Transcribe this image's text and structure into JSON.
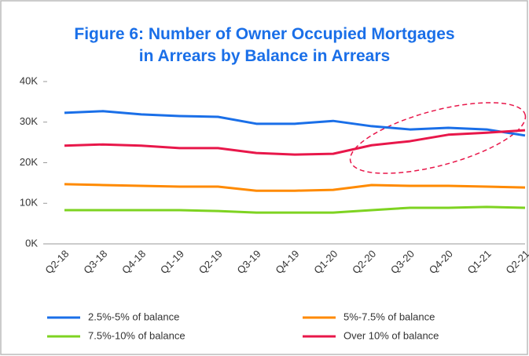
{
  "chart_data": {
    "type": "line",
    "title": "Figure 6: Number of Owner Occupied Mortgages\nin Arrears by Balance in Arrears",
    "categories": [
      "Q2-18",
      "Q3-18",
      "Q4-18",
      "Q1-19",
      "Q2-19",
      "Q3-19",
      "Q4-19",
      "Q1-20",
      "Q2-20",
      "Q3-20",
      "Q4-20",
      "Q1-21",
      "Q2-21"
    ],
    "series": [
      {
        "name": "2.5%-5% of balance",
        "color": "#1a6fe8",
        "values": [
          32.3,
          32.7,
          31.9,
          31.5,
          31.3,
          29.6,
          29.6,
          30.3,
          29,
          28.2,
          28.6,
          28.2,
          26.7
        ]
      },
      {
        "name": "5%-7.5% of balance",
        "color": "#ff8a00",
        "values": [
          14.7,
          14.5,
          14.3,
          14.1,
          14.1,
          13.1,
          13.1,
          13.3,
          14.5,
          14.3,
          14.3,
          14.1,
          13.9
        ]
      },
      {
        "name": "7.5%-10% of balance",
        "color": "#7ed321",
        "values": [
          8.3,
          8.3,
          8.3,
          8.3,
          8.1,
          7.7,
          7.7,
          7.7,
          8.3,
          8.9,
          8.9,
          9.1,
          8.9
        ]
      },
      {
        "name": "Over 10% of balance",
        "color": "#e8174a",
        "values": [
          24.2,
          24.5,
          24.2,
          23.6,
          23.6,
          22.4,
          22,
          22.2,
          24.3,
          25.3,
          26.9,
          27.4,
          28
        ]
      }
    ],
    "ylim": [
      0,
      40
    ],
    "yticks": [
      {
        "value": 0,
        "label": "0K"
      },
      {
        "value": 10,
        "label": "10K"
      },
      {
        "value": 20,
        "label": "20K"
      },
      {
        "value": 30,
        "label": "30K"
      },
      {
        "value": 40,
        "label": "40K"
      }
    ],
    "grid": false
  }
}
